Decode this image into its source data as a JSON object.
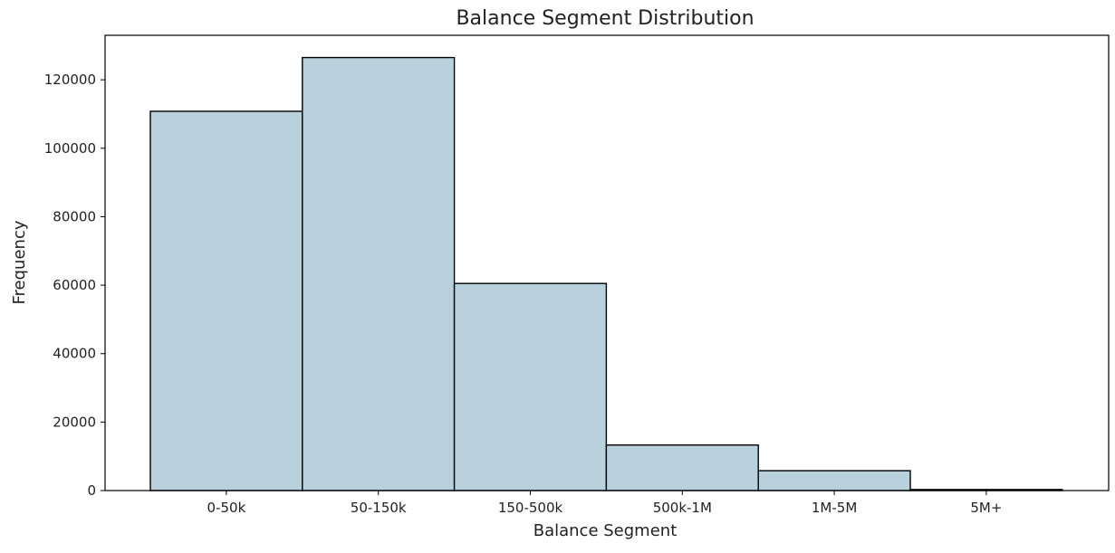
{
  "chart_data": {
    "type": "bar",
    "title": "Balance Segment Distribution",
    "xlabel": "Balance Segment",
    "ylabel": "Frequency",
    "categories": [
      "0-50k",
      "50-150k",
      "150-500k",
      "500k-1M",
      "1M-5M",
      "5M+"
    ],
    "values": [
      110800,
      126500,
      60500,
      13300,
      5800,
      300
    ],
    "ylim": [
      0,
      133000
    ],
    "yticks": [
      0,
      20000,
      40000,
      60000,
      80000,
      100000,
      120000
    ],
    "grid": false,
    "legend": "none",
    "colors": {
      "bar_fill": "#b9d1dc",
      "bar_edge": "#000000",
      "axis": "#000000",
      "background": "#ffffff"
    }
  }
}
